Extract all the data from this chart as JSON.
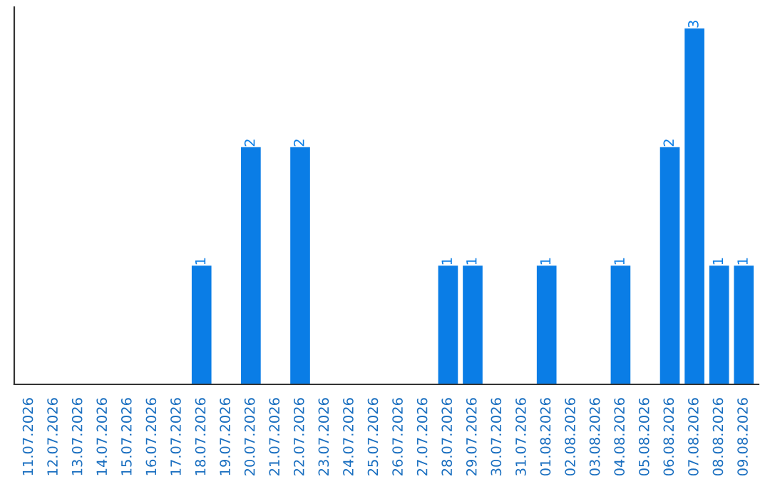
{
  "chart_data": {
    "type": "bar",
    "categories": [
      "11.07.2026",
      "12.07.2026",
      "13.07.2026",
      "14.07.2026",
      "15.07.2026",
      "16.07.2026",
      "17.07.2026",
      "18.07.2026",
      "19.07.2026",
      "20.07.2026",
      "21.07.2026",
      "22.07.2026",
      "23.07.2026",
      "24.07.2026",
      "25.07.2026",
      "26.07.2026",
      "27.07.2026",
      "28.07.2026",
      "29.07.2026",
      "30.07.2026",
      "31.07.2026",
      "01.08.2026",
      "02.08.2026",
      "03.08.2026",
      "04.08.2026",
      "05.08.2026",
      "06.08.2026",
      "07.08.2026",
      "08.08.2026",
      "09.08.2026"
    ],
    "values": [
      0,
      0,
      0,
      0,
      0,
      0,
      0,
      1,
      0,
      2,
      0,
      2,
      0,
      0,
      0,
      0,
      0,
      1,
      1,
      0,
      0,
      1,
      0,
      0,
      1,
      0,
      2,
      3,
      1,
      1
    ],
    "value_labels": [
      null,
      null,
      null,
      null,
      null,
      null,
      null,
      "1",
      null,
      "2",
      null,
      "2",
      null,
      null,
      null,
      null,
      null,
      "1",
      "1",
      null,
      null,
      "1",
      null,
      null,
      "1",
      null,
      "2",
      "3",
      "1",
      "1"
    ],
    "color": "#0a7de6",
    "grid": false,
    "legend": false
  }
}
